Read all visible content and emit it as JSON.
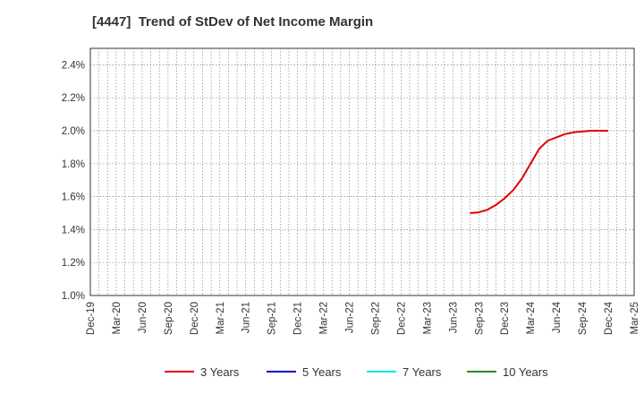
{
  "chart_data": {
    "type": "line",
    "title": "[4447]  Trend of StDev of Net Income Margin",
    "xlabel": "",
    "ylabel": "",
    "x_ticks": [
      "Dec-19",
      "Mar-20",
      "Jun-20",
      "Sep-20",
      "Dec-20",
      "Mar-21",
      "Jun-21",
      "Sep-21",
      "Dec-21",
      "Mar-22",
      "Jun-22",
      "Sep-22",
      "Dec-22",
      "Mar-23",
      "Jun-23",
      "Sep-23",
      "Dec-23",
      "Mar-24",
      "Jun-24",
      "Sep-24",
      "Dec-24",
      "Mar-25"
    ],
    "y_ticks": [
      "1.0%",
      "1.2%",
      "1.4%",
      "1.6%",
      "1.8%",
      "2.0%",
      "2.2%",
      "2.4%"
    ],
    "ylim": [
      1.0,
      2.5
    ],
    "grid": true,
    "legend_position": "bottom",
    "series": [
      {
        "name": "3 Years",
        "color": "#e00000",
        "points": [
          {
            "x": "Aug-23",
            "y": 1.5
          },
          {
            "x": "Sep-23",
            "y": 1.505
          },
          {
            "x": "Oct-23",
            "y": 1.52
          },
          {
            "x": "Nov-23",
            "y": 1.55
          },
          {
            "x": "Dec-23",
            "y": 1.59
          },
          {
            "x": "Jan-24",
            "y": 1.64
          },
          {
            "x": "Feb-24",
            "y": 1.71
          },
          {
            "x": "Mar-24",
            "y": 1.8
          },
          {
            "x": "Apr-24",
            "y": 1.89
          },
          {
            "x": "May-24",
            "y": 1.94
          },
          {
            "x": "Jun-24",
            "y": 1.96
          },
          {
            "x": "Jul-24",
            "y": 1.98
          },
          {
            "x": "Aug-24",
            "y": 1.99
          },
          {
            "x": "Sep-24",
            "y": 1.995
          },
          {
            "x": "Oct-24",
            "y": 2.0
          },
          {
            "x": "Nov-24",
            "y": 2.0
          },
          {
            "x": "Dec-24",
            "y": 2.0
          }
        ]
      },
      {
        "name": "5 Years",
        "color": "#0000cc",
        "points": []
      },
      {
        "name": "7 Years",
        "color": "#00e5ee",
        "points": []
      },
      {
        "name": "10 Years",
        "color": "#228b22",
        "points": []
      }
    ]
  }
}
